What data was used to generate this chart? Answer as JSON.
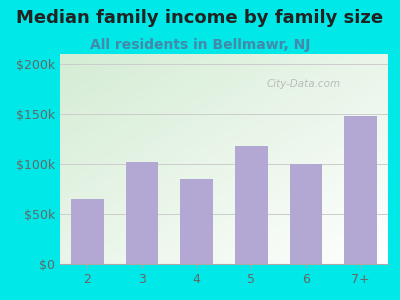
{
  "title": "Median family income by family size",
  "subtitle": "All residents in Bellmawr, NJ",
  "categories": [
    "2",
    "3",
    "4",
    "5",
    "6",
    "7+"
  ],
  "values": [
    65000,
    102000,
    85000,
    118000,
    100000,
    148000
  ],
  "bar_color": "#b3a8d4",
  "background_color": "#00e8e8",
  "plot_bg_topleft": "#d4ecd4",
  "plot_bg_bottomright": "#ffffff",
  "title_fontsize": 13,
  "subtitle_fontsize": 10,
  "title_color": "#222222",
  "subtitle_color": "#4488aa",
  "tick_color": "#666666",
  "ylim": [
    0,
    210000
  ],
  "yticks": [
    0,
    50000,
    100000,
    150000,
    200000
  ],
  "ytick_labels": [
    "$0",
    "$50k",
    "$100k",
    "$150k",
    "$200k"
  ],
  "watermark": "City-Data.com",
  "grid_color": "#cccccc"
}
